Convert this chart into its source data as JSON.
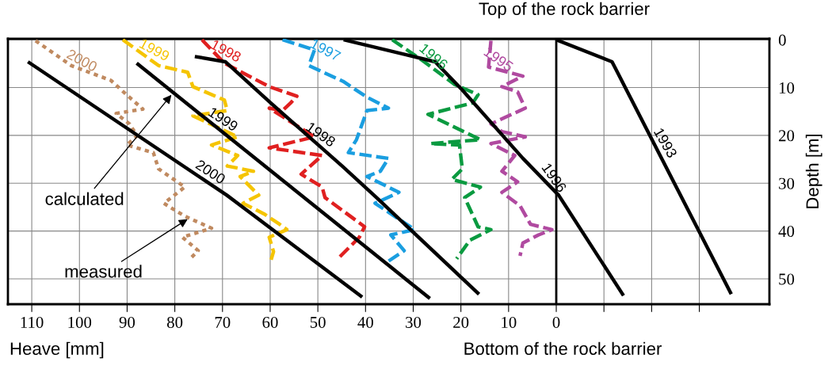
{
  "chart_data": {
    "type": "line",
    "title": "Top of the rock barrier",
    "xlabel": "Heave [mm]",
    "ylabel": "Depth [m]",
    "xlim": [
      115,
      -44.7
    ],
    "ylim": [
      55.3,
      -0.2
    ],
    "xticks": [
      110,
      100,
      90,
      80,
      70,
      60,
      50,
      40,
      30,
      20,
      10,
      0,
      {
        "value": -10,
        "label": null
      },
      {
        "value": -20,
        "label": null
      },
      {
        "value": -30,
        "label": null
      }
    ],
    "yticks": [
      0,
      10,
      20,
      30,
      40,
      50
    ],
    "grid": true,
    "legend": false,
    "marker": "none",
    "ref_lines": [
      {
        "axis": "x",
        "value": 0,
        "color": "#000000",
        "line_style": "solid"
      }
    ],
    "annotations": [
      {
        "text": "calculated",
        "x": 80.7,
        "y": 11.5
      },
      {
        "text": "measured",
        "x": 77.3,
        "y": 37.5
      },
      "Bottom of the rock barrier"
    ],
    "series": [
      {
        "name": "2000",
        "color": "#c08a60",
        "line_style": "dotted",
        "x": [
          109.2,
          101.7,
          93.4,
          90.1,
          86.7,
          92.3,
          89.5,
          87.9,
          90.1,
          84.5,
          83.4,
          77.9,
          82.3,
          77.9,
          72.3,
          78.4,
          75.1,
          76.8
        ],
        "values": [
          0.2,
          5.4,
          8.5,
          11.5,
          14.5,
          15.4,
          17.6,
          20.1,
          22.0,
          23.6,
          27.0,
          30.8,
          34.2,
          36.9,
          39.4,
          41.3,
          44.1,
          45.8
        ]
      },
      {
        "name": "1999",
        "color": "#f5c400",
        "line_style": "dashed",
        "x": [
          90.9,
          83.4,
          77.3,
          76.2,
          69.6,
          69.0,
          76.2,
          66.8,
          72.3,
          66.8,
          69.0,
          63.5,
          66.3,
          62.4,
          65.7,
          61.3,
          58.0,
          56.5,
          60.2,
          59.3,
          59.8
        ],
        "values": [
          0,
          5.4,
          6.8,
          9.8,
          12.6,
          14.8,
          15.9,
          20.3,
          22.0,
          24.2,
          26.4,
          27.5,
          28.6,
          32.5,
          34.2,
          36.4,
          38.6,
          39.7,
          41.3,
          44.3,
          46.0
        ]
      },
      {
        "name": "1998",
        "color": "#e02020",
        "line_style": "dashed",
        "x": [
          74.3,
          69.6,
          60.2,
          54.4,
          55.7,
          57.4,
          60.2,
          50.7,
          60.2,
          49.1,
          53.5,
          49.1,
          48.5,
          40.2,
          41.3,
          45.8
        ],
        "values": [
          0,
          4.9,
          9.8,
          11.8,
          13.2,
          14.8,
          14.3,
          20.3,
          22.6,
          24.2,
          28.1,
          30.8,
          33.0,
          39.1,
          41.3,
          45.8
        ]
      },
      {
        "name": "1997",
        "color": "#1a9ee0",
        "line_style": "dashed",
        "x": [
          57.4,
          50.7,
          51.9,
          44.7,
          39.7,
          35.2,
          39.7,
          41.9,
          43.6,
          35.2,
          36.9,
          39.7,
          33.0,
          38.0,
          29.7,
          34.7,
          31.9,
          35.2
        ],
        "values": [
          0,
          2.1,
          5.4,
          8.7,
          12.0,
          14.3,
          14.8,
          20.9,
          23.6,
          24.8,
          27.5,
          28.6,
          31.9,
          34.2,
          39.7,
          40.8,
          44.1,
          46.3
        ]
      },
      {
        "name": "1996",
        "color": "#0a9a40",
        "line_style": "dashed",
        "x": [
          34.4,
          28.1,
          21.4,
          16.4,
          17.5,
          26.9,
          15.9,
          26.4,
          20.3,
          19.7,
          21.9,
          15.9,
          19.2,
          16.4,
          13.7,
          18.1,
          20.9
        ],
        "values": [
          0,
          4.3,
          9.3,
          11.5,
          13.2,
          15.6,
          20.9,
          21.7,
          22.0,
          27.0,
          29.2,
          30.8,
          33.0,
          39.1,
          39.7,
          41.9,
          45.8
        ]
      },
      {
        "name": "1995",
        "color": "#b04aa0",
        "line_style": "dashed",
        "x": [
          13.7,
          14.2,
          7.0,
          11.4,
          8.1,
          6.5,
          13.7,
          11.4,
          6.5,
          13.7,
          8.7,
          11.4,
          8.1,
          11.4,
          7.6,
          5.4,
          0.9,
          3.7,
          7.0,
          7.6
        ],
        "values": [
          0.2,
          5.7,
          7.6,
          9.8,
          10.9,
          14.3,
          17.6,
          19.2,
          20.3,
          21.7,
          24.2,
          27.5,
          29.7,
          31.9,
          34.7,
          38.6,
          39.7,
          40.8,
          42.5,
          45.2
        ]
      },
      {
        "name": "2000",
        "color": "#000000",
        "line_style": "solid",
        "x": [
          110.8,
          69.1,
          40.7
        ],
        "values": [
          4.6,
          32.5,
          53.8
        ]
      },
      {
        "name": "1999",
        "color": "#000000",
        "line_style": "solid",
        "x": [
          88.0,
          26.5
        ],
        "values": [
          4.9,
          54.1
        ]
      },
      {
        "name": "1998",
        "color": "#000000",
        "line_style": "solid",
        "x": [
          75.8,
          69.4,
          59.9,
          44.9,
          37.7,
          16.2
        ],
        "values": [
          3.5,
          4.6,
          13.2,
          26.4,
          33.0,
          53.2
        ]
      },
      {
        "name": "1996",
        "color": "#000000",
        "line_style": "solid",
        "x": [
          44.6,
          25.4,
          19.8,
          7.0,
          -0.5,
          -14.1
        ],
        "values": [
          0,
          4.6,
          10.4,
          24.8,
          32.5,
          53.5
        ]
      },
      {
        "name": "1993",
        "color": "#000000",
        "line_style": "solid",
        "x": [
          0,
          -11.7,
          -36.7
        ],
        "values": [
          0,
          4.6,
          53.2
        ]
      }
    ]
  }
}
